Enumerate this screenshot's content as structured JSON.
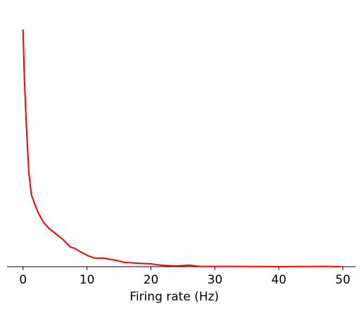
{
  "chart_data": {
    "type": "line",
    "xlabel": "Firing rate (Hz)",
    "x": [
      0,
      0.2,
      0.5,
      0.9,
      1.3,
      1.9,
      2.4,
      3.2,
      4.1,
      5.2,
      6.3,
      7.4,
      8.1,
      9.0,
      10.1,
      11.2,
      12.6,
      14.5,
      15.9,
      17.8,
      20.0,
      21.6,
      23.8,
      26.0,
      27.7,
      32.6,
      40.3,
      47.5,
      49.7
    ],
    "values": [
      1.0,
      0.8,
      0.605,
      0.398,
      0.303,
      0.258,
      0.226,
      0.187,
      0.16,
      0.137,
      0.113,
      0.083,
      0.077,
      0.062,
      0.047,
      0.036,
      0.036,
      0.027,
      0.018,
      0.015,
      0.012,
      0.006,
      0.003,
      0.006,
      0.001,
      0.001,
      0,
      0.001,
      0
    ],
    "color": "#ff0000",
    "xlim": [
      -2.5,
      52
    ],
    "ylim": [
      0,
      1.05
    ],
    "xticks": [
      0,
      10,
      20,
      30,
      40,
      50
    ]
  }
}
